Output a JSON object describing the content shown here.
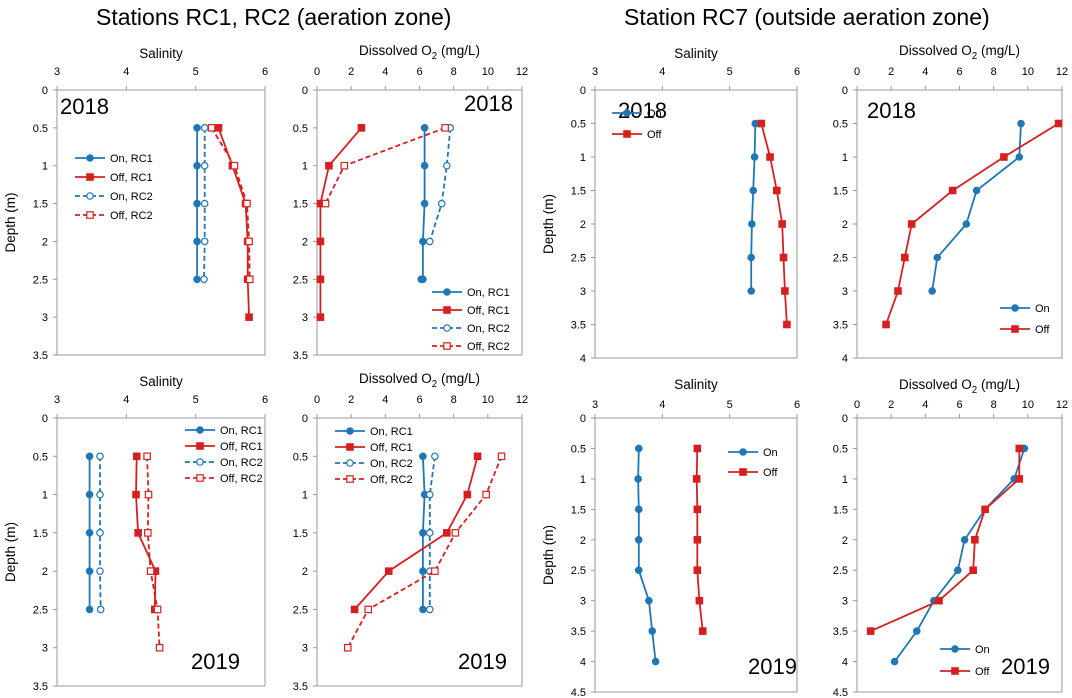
{
  "titles": {
    "left": "Stations RC1, RC2 (aeration zone)",
    "right": "Station RC7 (outside aeration zone)"
  },
  "colors": {
    "on": "#1f77b4",
    "off": "#d62020"
  },
  "chart_data": [
    {
      "type": "line",
      "title": "Salinity",
      "xlabel": "Salinity",
      "ylabel": "Depth (m)",
      "year": "2018",
      "xlim": [
        3,
        6
      ],
      "xticks": [
        3,
        4,
        5,
        6
      ],
      "ylim": [
        0,
        3.5
      ],
      "yticks": [
        0,
        0.5,
        1,
        1.5,
        2,
        2.5,
        3,
        3.5
      ],
      "legend_position": "middle-left",
      "series": [
        {
          "name": "On, RC1",
          "x": [
            5.02,
            5.02,
            5.02,
            5.02,
            5.02
          ],
          "y": [
            0.5,
            1,
            1.5,
            2,
            2.5
          ]
        },
        {
          "name": "Off, RC1",
          "x": [
            5.33,
            5.53,
            5.72,
            5.75,
            5.75,
            5.77
          ],
          "y": [
            0.5,
            1,
            1.5,
            2,
            2.5,
            3
          ]
        },
        {
          "name": "On, RC2",
          "x": [
            5.13,
            5.13,
            5.13,
            5.13,
            5.12
          ],
          "y": [
            0.5,
            1,
            1.5,
            2,
            2.5
          ]
        },
        {
          "name": "Off, RC2",
          "x": [
            5.23,
            5.56,
            5.74,
            5.77,
            5.78
          ],
          "y": [
            0.5,
            1,
            1.5,
            2,
            2.5
          ]
        }
      ]
    },
    {
      "type": "line",
      "title": "Dissolved O2 (mg/L)",
      "xlabel": "Dissolved O2 (mg/L)",
      "ylabel": "",
      "year": "2018",
      "xlim": [
        0,
        12
      ],
      "xticks": [
        0,
        2,
        4,
        6,
        8,
        10,
        12
      ],
      "ylim": [
        0,
        3.5
      ],
      "yticks": [
        0,
        0.5,
        1,
        1.5,
        2,
        2.5,
        3,
        3.5
      ],
      "legend_position": "bottom-right",
      "series": [
        {
          "name": "On, RC1",
          "x": [
            6.3,
            6.3,
            6.3,
            6.2,
            6.2,
            6.1
          ],
          "y": [
            0.5,
            1,
            1.5,
            2,
            2.5,
            2.5
          ]
        },
        {
          "name": "Off, RC1",
          "x": [
            2.6,
            0.7,
            0.2,
            0.2,
            0.2,
            0.2
          ],
          "y": [
            0.5,
            1,
            1.5,
            2,
            2.5,
            3
          ]
        },
        {
          "name": "On, RC2",
          "x": [
            7.8,
            7.6,
            7.3,
            6.6
          ],
          "y": [
            0.5,
            1,
            1.5,
            2
          ]
        },
        {
          "name": "Off, RC2",
          "x": [
            7.5,
            1.6,
            0.5
          ],
          "y": [
            0.5,
            1,
            1.5
          ]
        }
      ]
    },
    {
      "type": "line",
      "title": "Salinity",
      "xlabel": "Salinity",
      "ylabel": "Depth (m)",
      "year": "2019",
      "xlim": [
        3,
        6
      ],
      "xticks": [
        3,
        4,
        5,
        6
      ],
      "ylim": [
        0,
        3.5
      ],
      "yticks": [
        0,
        0.5,
        1,
        1.5,
        2,
        2.5,
        3,
        3.5
      ],
      "legend_position": "top-right",
      "series": [
        {
          "name": "On, RC1",
          "x": [
            3.47,
            3.47,
            3.47,
            3.47,
            3.47
          ],
          "y": [
            0.5,
            1,
            1.5,
            2,
            2.5
          ]
        },
        {
          "name": "Off, RC1",
          "x": [
            4.15,
            4.14,
            4.17,
            4.42,
            4.41
          ],
          "y": [
            0.5,
            1,
            1.5,
            2,
            2.5
          ]
        },
        {
          "name": "On, RC2",
          "x": [
            3.62,
            3.62,
            3.62,
            3.62,
            3.63
          ],
          "y": [
            0.5,
            1,
            1.5,
            2,
            2.5
          ]
        },
        {
          "name": "Off, RC2",
          "x": [
            4.3,
            4.32,
            4.31,
            4.35,
            4.45,
            4.48
          ],
          "y": [
            0.5,
            1,
            1.5,
            2,
            2.5,
            3
          ]
        }
      ]
    },
    {
      "type": "line",
      "title": "Dissolved O2 (mg/L)",
      "xlabel": "Dissolved O2 (mg/L)",
      "ylabel": "",
      "year": "2019",
      "xlim": [
        0,
        12
      ],
      "xticks": [
        0,
        2,
        4,
        6,
        8,
        10,
        12
      ],
      "ylim": [
        0,
        3.5
      ],
      "yticks": [
        0,
        0.5,
        1,
        1.5,
        2,
        2.5,
        3,
        3.5
      ],
      "legend_position": "top-left",
      "series": [
        {
          "name": "On, RC1",
          "x": [
            6.2,
            6.3,
            6.2,
            6.2,
            6.2
          ],
          "y": [
            0.5,
            1,
            1.5,
            2,
            2.5
          ]
        },
        {
          "name": "Off, RC1",
          "x": [
            9.4,
            8.8,
            7.6,
            4.2,
            2.2
          ],
          "y": [
            0.5,
            1,
            1.5,
            2,
            2.5
          ]
        },
        {
          "name": "On, RC2",
          "x": [
            6.9,
            6.6,
            6.6,
            6.6,
            6.6
          ],
          "y": [
            0.5,
            1,
            1.5,
            2,
            2.5
          ]
        },
        {
          "name": "Off, RC2",
          "x": [
            10.8,
            9.9,
            8.1,
            6.9,
            3.0,
            1.8
          ],
          "y": [
            0.5,
            1,
            1.5,
            2,
            2.5,
            3
          ]
        }
      ]
    },
    {
      "type": "line",
      "title": "Salinity",
      "xlabel": "Salinity",
      "ylabel": "Depth (m)",
      "year": "2018",
      "xlim": [
        3,
        6
      ],
      "xticks": [
        3,
        4,
        5,
        6
      ],
      "ylim": [
        0,
        4
      ],
      "yticks": [
        0,
        0.5,
        1,
        1.5,
        2,
        2.5,
        3,
        3.5,
        4
      ],
      "legend_position": "top-left",
      "series": [
        {
          "name": "On",
          "x": [
            5.38,
            5.37,
            5.35,
            5.33,
            5.32,
            5.32
          ],
          "y": [
            0.5,
            1,
            1.5,
            2,
            2.5,
            3
          ]
        },
        {
          "name": "Off",
          "x": [
            5.47,
            5.6,
            5.7,
            5.78,
            5.8,
            5.82,
            5.85
          ],
          "y": [
            0.5,
            1,
            1.5,
            2,
            2.5,
            3,
            3.5
          ]
        }
      ]
    },
    {
      "type": "line",
      "title": "Dissolved O2 (mg/L)",
      "xlabel": "Dissolved O2 (mg/L)",
      "ylabel": "",
      "year": "2018",
      "xlim": [
        0,
        12
      ],
      "xticks": [
        0,
        2,
        4,
        6,
        8,
        10,
        12
      ],
      "ylim": [
        0,
        4
      ],
      "yticks": [
        0,
        0.5,
        1,
        1.5,
        2,
        2.5,
        3,
        3.5,
        4
      ],
      "legend_position": "bottom-right",
      "series": [
        {
          "name": "On",
          "x": [
            9.6,
            9.5,
            7,
            6.4,
            4.7,
            4.4
          ],
          "y": [
            0.5,
            1,
            1.5,
            2,
            2.5,
            3
          ]
        },
        {
          "name": "Off",
          "x": [
            11.8,
            8.6,
            5.6,
            3.2,
            2.8,
            2.4,
            1.7
          ],
          "y": [
            0.5,
            1,
            1.5,
            2,
            2.5,
            3,
            3.5
          ]
        }
      ]
    },
    {
      "type": "line",
      "title": "Salinity",
      "xlabel": "Salinity",
      "ylabel": "Depth (m)",
      "year": "2019",
      "xlim": [
        3,
        6
      ],
      "xticks": [
        3,
        4,
        5,
        6
      ],
      "ylim": [
        0,
        4.5
      ],
      "yticks": [
        0,
        0.5,
        1,
        1.5,
        2,
        2.5,
        3,
        3.5,
        4,
        4.5
      ],
      "legend_position": "top-right",
      "series": [
        {
          "name": "On",
          "x": [
            3.65,
            3.64,
            3.65,
            3.65,
            3.65,
            3.8,
            3.85,
            3.9
          ],
          "y": [
            0.5,
            1,
            1.5,
            2,
            2.5,
            3,
            3.5,
            4
          ]
        },
        {
          "name": "Off",
          "x": [
            4.52,
            4.51,
            4.52,
            4.52,
            4.52,
            4.55,
            4.6
          ],
          "y": [
            0.5,
            1,
            1.5,
            2,
            2.5,
            3,
            3.5
          ]
        }
      ]
    },
    {
      "type": "line",
      "title": "Dissolved O2 (mg/L)",
      "xlabel": "Dissolved O2 (mg/L)",
      "ylabel": "",
      "year": "2019",
      "xlim": [
        0,
        12
      ],
      "xticks": [
        0,
        2,
        4,
        6,
        8,
        10,
        12
      ],
      "ylim": [
        0,
        4.5
      ],
      "yticks": [
        0,
        0.5,
        1,
        1.5,
        2,
        2.5,
        3,
        3.5,
        4,
        4.5
      ],
      "legend_position": "bottom-right",
      "series": [
        {
          "name": "On",
          "x": [
            9.8,
            9.2,
            7.5,
            6.3,
            5.9,
            4.5,
            3.5,
            2.2
          ],
          "y": [
            0.5,
            1,
            1.5,
            2,
            2.5,
            3,
            3.5,
            4
          ]
        },
        {
          "name": "Off",
          "x": [
            9.5,
            9.5,
            7.5,
            6.9,
            6.8,
            4.8,
            0.8
          ],
          "y": [
            0.5,
            1,
            1.5,
            2,
            2.5,
            3,
            3.5
          ]
        }
      ]
    }
  ]
}
